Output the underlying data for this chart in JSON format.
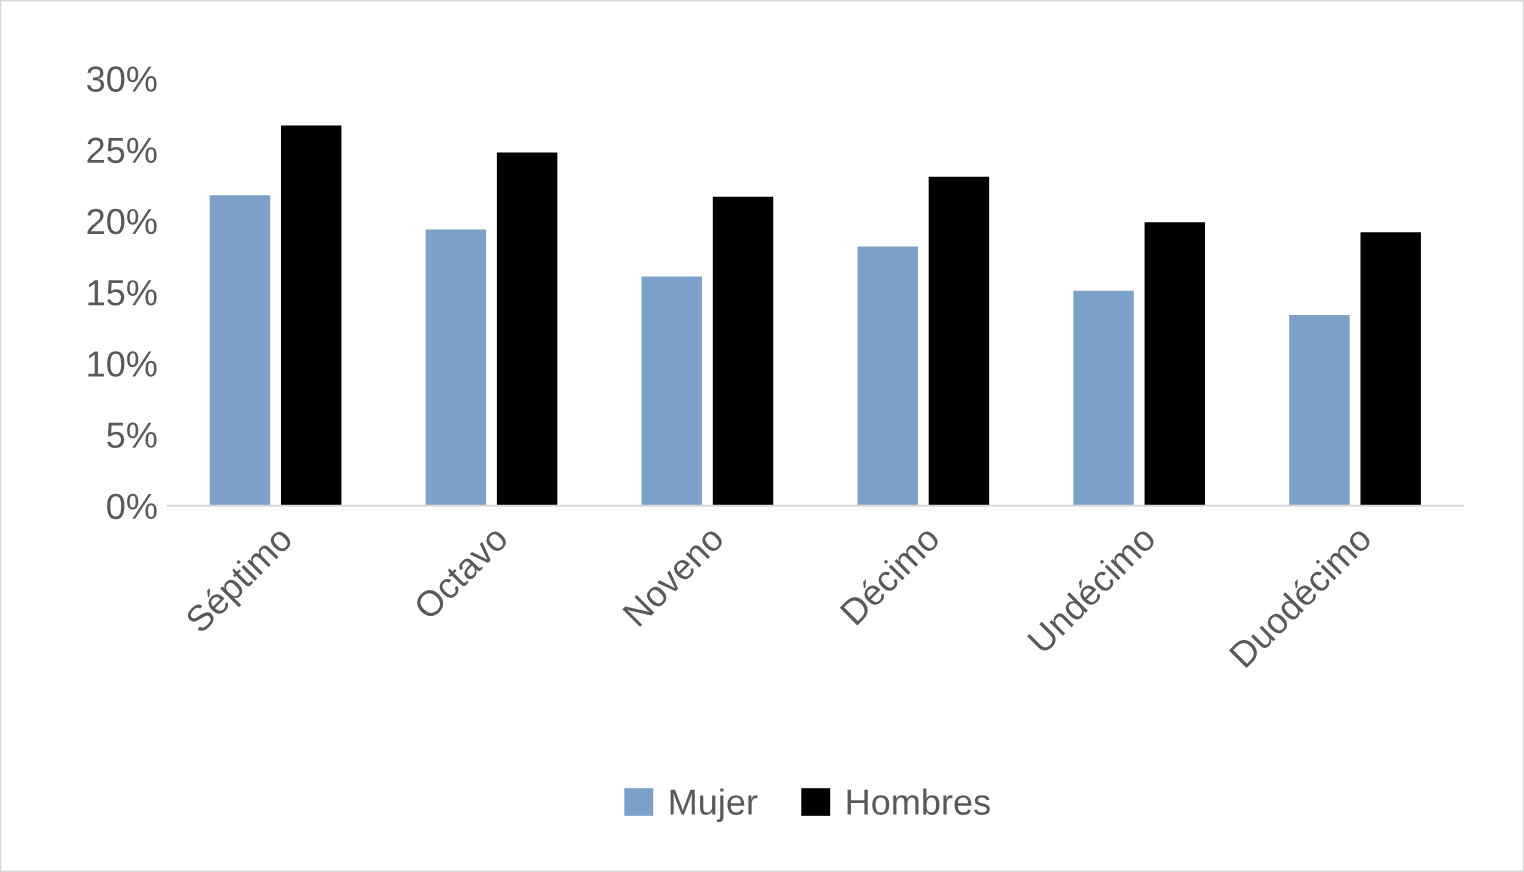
{
  "chart_data": {
    "type": "bar",
    "categories": [
      "Séptimo",
      "Octavo",
      "Noveno",
      "Décimo",
      "Undécimo",
      "Duodécimo"
    ],
    "series": [
      {
        "name": "Mujer",
        "color": "#7ba0c9",
        "values": [
          21.8,
          19.4,
          16.1,
          18.2,
          15.1,
          13.4
        ]
      },
      {
        "name": "Hombres",
        "color": "#000000",
        "values": [
          26.7,
          24.8,
          21.7,
          23.1,
          19.9,
          19.2
        ]
      }
    ],
    "ylim": [
      0,
      30
    ],
    "yticks": [
      {
        "value": 0,
        "label": "0%"
      },
      {
        "value": 5,
        "label": "5%"
      },
      {
        "value": 10,
        "label": "10%"
      },
      {
        "value": 15,
        "label": "15%"
      },
      {
        "value": 20,
        "label": "20%"
      },
      {
        "value": 25,
        "label": "25%"
      },
      {
        "value": 30,
        "label": "30%"
      }
    ],
    "grid": false,
    "legend": "bottom"
  }
}
